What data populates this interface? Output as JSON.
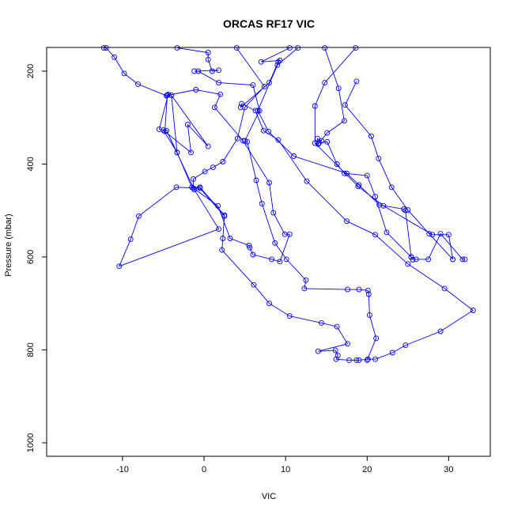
{
  "chart_data": {
    "type": "line",
    "title": "ORCAS RF17 VIC",
    "xlabel": "VIC",
    "ylabel": "Pressure (mbar)",
    "xlim": [
      -19.3,
      35.1
    ],
    "ylim": [
      1029,
      149
    ],
    "x_ticks": [
      -10,
      0,
      10,
      20,
      30
    ],
    "y_ticks": [
      200,
      400,
      600,
      800,
      1000
    ],
    "grid": false,
    "legend": "none",
    "line_color": "#0000ff",
    "marker": "open-circle",
    "series": [
      {
        "points": [
          [
            -12.3,
            150
          ],
          [
            -12.0,
            150
          ],
          [
            -11.0,
            170
          ],
          [
            -9.8,
            205
          ],
          [
            -8.1,
            228
          ],
          [
            -4.6,
            253
          ],
          [
            -4.4,
            250
          ],
          [
            -5.5,
            325
          ],
          [
            -5.0,
            327
          ],
          [
            -3.3,
            375
          ],
          [
            -1.5,
            450
          ],
          [
            -0.5,
            450
          ],
          [
            2.5,
            510
          ],
          [
            2.3,
            560
          ],
          [
            2.2,
            585
          ],
          [
            6.1,
            660
          ],
          [
            8.0,
            700
          ],
          [
            10.5,
            727
          ],
          [
            14.4,
            742
          ],
          [
            16.3,
            750
          ],
          [
            17.6,
            787
          ],
          [
            14.0,
            803
          ],
          [
            16.1,
            801
          ],
          [
            16.4,
            812
          ],
          [
            16.2,
            820
          ],
          [
            17.8,
            822
          ],
          [
            18.7,
            822
          ],
          [
            19.0,
            822
          ],
          [
            20.1,
            820
          ],
          [
            21.0,
            820
          ],
          [
            23.1,
            806
          ],
          [
            24.7,
            790
          ],
          [
            29.0,
            760
          ],
          [
            33.0,
            715
          ],
          [
            29.5,
            668
          ],
          [
            25.0,
            615
          ],
          [
            21.0,
            552
          ],
          [
            17.5,
            523
          ],
          [
            12.6,
            437
          ],
          [
            9.1,
            348
          ],
          [
            7.3,
            328
          ],
          [
            6.3,
            285
          ],
          [
            4.6,
            270
          ],
          [
            4.5,
            278
          ],
          [
            8.0,
            225
          ],
          [
            9.1,
            180
          ],
          [
            9.3,
            177
          ],
          [
            7.0,
            180
          ],
          [
            10.5,
            150
          ]
        ]
      },
      {
        "points": [
          [
            -3.3,
            150
          ],
          [
            0.5,
            160
          ],
          [
            0.5,
            175
          ],
          [
            1.0,
            200
          ],
          [
            1.8,
            198
          ],
          [
            -1.2,
            200
          ],
          [
            -0.7,
            200
          ],
          [
            1.8,
            225
          ],
          [
            6.0,
            230
          ],
          [
            6.8,
            285
          ],
          [
            5.0,
            350
          ],
          [
            5.3,
            352
          ],
          [
            6.4,
            435
          ],
          [
            7.1,
            485
          ],
          [
            8.7,
            570
          ],
          [
            10.1,
            605
          ],
          [
            12.5,
            650
          ],
          [
            12.3,
            668
          ],
          [
            17.6,
            670
          ],
          [
            19.0,
            670
          ],
          [
            20.1,
            672
          ],
          [
            20.2,
            680
          ],
          [
            20.3,
            725
          ],
          [
            21.1,
            775
          ],
          [
            20.0,
            822
          ]
        ]
      },
      {
        "points": [
          [
            4.0,
            150
          ],
          [
            7.4,
            233
          ],
          [
            5.0,
            278
          ],
          [
            4.1,
            345
          ],
          [
            2.3,
            395
          ],
          [
            1.1,
            407
          ],
          [
            0.1,
            416
          ],
          [
            -1.3,
            432
          ],
          [
            -1.3,
            452
          ],
          [
            1.7,
            490
          ],
          [
            3.2,
            560
          ],
          [
            5.5,
            575
          ],
          [
            5.6,
            580
          ],
          [
            6.0,
            595
          ],
          [
            8.3,
            605
          ],
          [
            9.3,
            610
          ],
          [
            10.5,
            551
          ],
          [
            9.9,
            551
          ],
          [
            8.5,
            505
          ],
          [
            8.0,
            440
          ],
          [
            4.8,
            350
          ],
          [
            1.3,
            278
          ],
          [
            2.0,
            250
          ],
          [
            -1.0,
            240
          ],
          [
            -4.5,
            252
          ],
          [
            -4.8,
            330
          ],
          [
            -1.6,
            375
          ],
          [
            -2.0,
            315
          ],
          [
            0.5,
            362
          ],
          [
            -4.0,
            252
          ],
          [
            -3.3,
            375
          ],
          [
            -4.6,
            328
          ],
          [
            -1.2,
            455
          ],
          [
            1.8,
            540
          ],
          [
            -10.4,
            620
          ],
          [
            -9.0,
            562
          ],
          [
            -8.0,
            512
          ],
          [
            -3.4,
            450
          ],
          [
            -0.5,
            452
          ],
          [
            2.5,
            512
          ]
        ]
      },
      {
        "points": [
          [
            11.5,
            150
          ],
          [
            9.0,
            187
          ],
          [
            6.6,
            285
          ],
          [
            7.9,
            330
          ],
          [
            11.0,
            383
          ],
          [
            17.5,
            420
          ],
          [
            19.0,
            445
          ],
          [
            21.5,
            488
          ],
          [
            24.5,
            497
          ],
          [
            24.7,
            500
          ],
          [
            25.4,
            600
          ],
          [
            26.0,
            605
          ],
          [
            27.5,
            605
          ],
          [
            29.0,
            550
          ],
          [
            31.7,
            605
          ],
          [
            32.0,
            605
          ]
        ]
      },
      {
        "points": [
          [
            14.8,
            150
          ],
          [
            16.5,
            237
          ],
          [
            17.2,
            307
          ],
          [
            15.1,
            333
          ],
          [
            14.0,
            357
          ],
          [
            13.9,
            345
          ],
          [
            14.4,
            350
          ],
          [
            14.1,
            355
          ],
          [
            15.1,
            352
          ],
          [
            16.3,
            400
          ],
          [
            17.2,
            420
          ],
          [
            20.0,
            425
          ],
          [
            21.0,
            470
          ],
          [
            22.4,
            547
          ],
          [
            25.4,
            600
          ],
          [
            25.6,
            606
          ]
        ]
      },
      {
        "points": [
          [
            18.6,
            150
          ],
          [
            14.8,
            225
          ],
          [
            13.6,
            275
          ],
          [
            13.6,
            355
          ],
          [
            18.9,
            448
          ],
          [
            22.0,
            490
          ],
          [
            28.0,
            552
          ],
          [
            30.0,
            552
          ],
          [
            30.5,
            605
          ]
        ]
      },
      {
        "points": [
          [
            18.7,
            222
          ],
          [
            17.3,
            273
          ],
          [
            20.5,
            340
          ],
          [
            21.4,
            388
          ],
          [
            23.0,
            450
          ],
          [
            25.0,
            499
          ],
          [
            27.6,
            550
          ],
          [
            30.5,
            605
          ]
        ]
      }
    ]
  }
}
